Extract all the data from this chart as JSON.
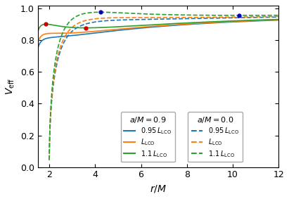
{
  "xlabel": "$r/M$",
  "ylabel": "$V_{\\mathrm{eff}}$",
  "xlim": [
    1.5,
    12.0
  ],
  "ylim": [
    0.0,
    1.02
  ],
  "xticks": [
    2,
    4,
    6,
    8,
    10,
    12
  ],
  "yticks": [
    0.0,
    0.2,
    0.4,
    0.6,
    0.8,
    1.0
  ],
  "colors": [
    "#1f77b4",
    "#ff7f0e",
    "#2ca02c"
  ],
  "L_factors": [
    0.95,
    1.0,
    1.1
  ],
  "figsize": [
    4.11,
    2.83
  ],
  "dpi": 100,
  "legend1_title": "$a/M=0.9$",
  "legend2_title": "$a/M=0.0$",
  "legend_labels": [
    "$0.95\\,L_{\\mathrm{LCO}}$",
    "$L_{\\mathrm{LCO}}$",
    "$1.1\\,L_{\\mathrm{LCO}}$"
  ],
  "dot_red": "#cc0000",
  "dot_blue": "#0000bb"
}
